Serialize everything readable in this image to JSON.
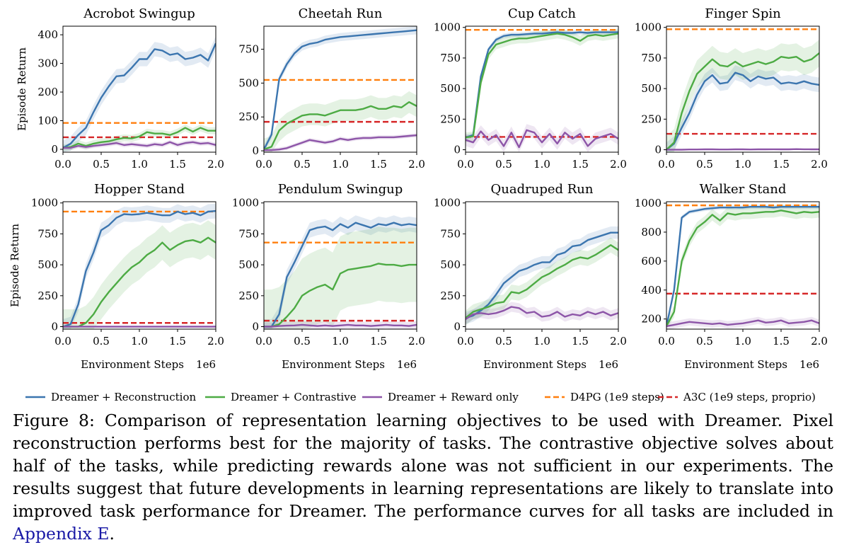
{
  "colors": {
    "reconstruction": "#3b75af",
    "contrastive": "#4dab44",
    "reward_only": "#8d55a8",
    "d4pg": "#ff7f0e",
    "a3c": "#d62728"
  },
  "legend": [
    {
      "label": "Dreamer + Reconstruction",
      "style": "solid",
      "color": "#3b75af"
    },
    {
      "label": "Dreamer + Contrastive",
      "style": "solid",
      "color": "#4dab44"
    },
    {
      "label": "Dreamer + Reward only",
      "style": "solid",
      "color": "#8d55a8"
    },
    {
      "label": "D4PG (1e9 steps)",
      "style": "dashed",
      "color": "#ff7f0e"
    },
    {
      "label": "A3C (1e9 steps, proprio)",
      "style": "dashed",
      "color": "#d62728"
    }
  ],
  "caption": {
    "text": "Figure 8: Comparison of representation learning objectives to be used with Dreamer. Pixel reconstruction performs best for the majority of tasks. The contrastive objective solves about half of the tasks, while predicting rewards alone was not sufficient in our experiments. The results suggest that future developments in learning representations are likely to translate into improved task performance for Dreamer. The performance curves for all tasks are included in ",
    "link": "Appendix E",
    "end": "."
  },
  "chart_data": [
    {
      "type": "line",
      "title": "Acrobot Swingup",
      "ylabel": "Episode Return",
      "xlabel": "",
      "x_offset_label": "",
      "xlim": [
        0,
        2.0
      ],
      "ylim": [
        -10,
        430
      ],
      "xticks": [
        0.0,
        0.5,
        1.0,
        1.5,
        2.0
      ],
      "yticks": [
        0,
        100,
        200,
        300,
        400
      ],
      "x": [
        0.0,
        0.1,
        0.2,
        0.3,
        0.4,
        0.5,
        0.6,
        0.7,
        0.8,
        0.9,
        1.0,
        1.1,
        1.2,
        1.3,
        1.4,
        1.5,
        1.6,
        1.7,
        1.8,
        1.9,
        2.0
      ],
      "series": [
        {
          "name": "Dreamer + Reconstruction",
          "values": [
            5,
            20,
            50,
            75,
            130,
            180,
            220,
            255,
            258,
            285,
            315,
            315,
            350,
            345,
            330,
            335,
            315,
            320,
            330,
            310,
            370
          ],
          "band": 25
        },
        {
          "name": "Dreamer + Contrastive",
          "values": [
            5,
            8,
            20,
            12,
            20,
            25,
            28,
            35,
            40,
            38,
            45,
            60,
            55,
            55,
            50,
            60,
            75,
            62,
            75,
            65,
            65
          ],
          "band": 12
        },
        {
          "name": "Dreamer + Reward only",
          "values": [
            5,
            5,
            12,
            8,
            12,
            15,
            18,
            22,
            15,
            18,
            15,
            12,
            18,
            15,
            25,
            15,
            22,
            25,
            20,
            22,
            15
          ],
          "band": 8
        }
      ],
      "baselines": [
        {
          "name": "D4PG (1e9 steps)",
          "value": 92
        },
        {
          "name": "A3C (1e9 steps, proprio)",
          "value": 42
        }
      ]
    },
    {
      "type": "line",
      "title": "Cheetah Run",
      "ylabel": "",
      "xlabel": "",
      "x_offset_label": "",
      "xlim": [
        0,
        2.0
      ],
      "ylim": [
        -10,
        920
      ],
      "xticks": [
        0.0,
        0.5,
        1.0,
        1.5,
        2.0
      ],
      "yticks": [
        0,
        250,
        500,
        750
      ],
      "x": [
        0.0,
        0.1,
        0.2,
        0.3,
        0.4,
        0.5,
        0.6,
        0.7,
        0.8,
        0.9,
        1.0,
        1.1,
        1.2,
        1.3,
        1.4,
        1.5,
        1.6,
        1.7,
        1.8,
        1.9,
        2.0
      ],
      "series": [
        {
          "name": "Dreamer + Reconstruction",
          "values": [
            10,
            120,
            530,
            640,
            720,
            770,
            790,
            800,
            820,
            830,
            840,
            845,
            850,
            855,
            860,
            865,
            870,
            875,
            880,
            885,
            890
          ],
          "band": 30
        },
        {
          "name": "Dreamer + Contrastive",
          "values": [
            10,
            30,
            150,
            200,
            230,
            260,
            270,
            270,
            260,
            280,
            300,
            300,
            300,
            310,
            330,
            310,
            310,
            330,
            320,
            360,
            330
          ],
          "band": 80
        },
        {
          "name": "Dreamer + Reward only",
          "values": [
            5,
            5,
            10,
            20,
            40,
            60,
            80,
            70,
            60,
            70,
            90,
            80,
            90,
            95,
            95,
            100,
            100,
            100,
            105,
            110,
            115
          ],
          "band": 15
        }
      ],
      "baselines": [
        {
          "name": "D4PG (1e9 steps)",
          "value": 523
        },
        {
          "name": "A3C (1e9 steps, proprio)",
          "value": 214
        }
      ]
    },
    {
      "type": "line",
      "title": "Cup Catch",
      "ylabel": "",
      "xlabel": "",
      "x_offset_label": "",
      "xlim": [
        0,
        2.0
      ],
      "ylim": [
        -20,
        1010
      ],
      "xticks": [
        0.0,
        0.5,
        1.0,
        1.5,
        2.0
      ],
      "yticks": [
        0,
        250,
        500,
        750,
        1000
      ],
      "x": [
        0.0,
        0.1,
        0.2,
        0.3,
        0.4,
        0.5,
        0.6,
        0.7,
        0.8,
        0.9,
        1.0,
        1.1,
        1.2,
        1.3,
        1.4,
        1.5,
        1.6,
        1.7,
        1.8,
        1.9,
        2.0
      ],
      "series": [
        {
          "name": "Dreamer + Reconstruction",
          "values": [
            100,
            120,
            600,
            820,
            900,
            930,
            940,
            940,
            945,
            950,
            950,
            955,
            960,
            955,
            955,
            960,
            955,
            960,
            960,
            960,
            960
          ],
          "band": 20
        },
        {
          "name": "Dreamer + Contrastive",
          "values": [
            100,
            110,
            550,
            780,
            860,
            880,
            900,
            910,
            910,
            920,
            930,
            940,
            950,
            940,
            920,
            890,
            930,
            940,
            930,
            940,
            950
          ],
          "band": 40
        },
        {
          "name": "Dreamer + Reward only",
          "values": [
            80,
            60,
            150,
            80,
            120,
            30,
            140,
            20,
            160,
            140,
            60,
            130,
            50,
            140,
            90,
            130,
            30,
            90,
            110,
            130,
            90
          ],
          "band": 50
        }
      ],
      "baselines": [
        {
          "name": "D4PG (1e9 steps)",
          "value": 980
        },
        {
          "name": "A3C (1e9 steps, proprio)",
          "value": 105
        }
      ]
    },
    {
      "type": "line",
      "title": "Finger Spin",
      "ylabel": "",
      "xlabel": "",
      "x_offset_label": "",
      "xlim": [
        0,
        2.0
      ],
      "ylim": [
        -20,
        1010
      ],
      "xticks": [
        0.0,
        0.5,
        1.0,
        1.5,
        2.0
      ],
      "yticks": [
        0,
        250,
        500,
        750,
        1000
      ],
      "x": [
        0.0,
        0.1,
        0.2,
        0.3,
        0.4,
        0.5,
        0.6,
        0.7,
        0.8,
        0.9,
        1.0,
        1.1,
        1.2,
        1.3,
        1.4,
        1.5,
        1.6,
        1.7,
        1.8,
        1.9,
        2.0
      ],
      "series": [
        {
          "name": "Dreamer + Reconstruction",
          "values": [
            0,
            50,
            180,
            300,
            450,
            560,
            610,
            540,
            550,
            630,
            610,
            560,
            600,
            580,
            590,
            540,
            550,
            540,
            560,
            540,
            530
          ],
          "band": 60
        },
        {
          "name": "Dreamer + Contrastive",
          "values": [
            0,
            60,
            300,
            480,
            620,
            680,
            740,
            690,
            680,
            720,
            680,
            700,
            720,
            700,
            720,
            760,
            750,
            760,
            720,
            740,
            790
          ],
          "band": 110
        },
        {
          "name": "Dreamer + Reward only",
          "values": [
            0,
            0,
            0,
            2,
            2,
            3,
            3,
            2,
            2,
            3,
            3,
            2,
            3,
            3,
            4,
            3,
            3,
            5,
            4,
            3,
            3
          ],
          "band": 5
        }
      ],
      "baselines": [
        {
          "name": "D4PG (1e9 steps)",
          "value": 985
        },
        {
          "name": "A3C (1e9 steps, proprio)",
          "value": 130
        }
      ]
    },
    {
      "type": "line",
      "title": "Hopper Stand",
      "ylabel": "Episode Return",
      "xlabel": "Environment Steps",
      "x_offset_label": "1e6",
      "xlim": [
        0,
        2.0
      ],
      "ylim": [
        -20,
        1010
      ],
      "xticks": [
        0.0,
        0.5,
        1.0,
        1.5,
        2.0
      ],
      "yticks": [
        0,
        250,
        500,
        750,
        1000
      ],
      "x": [
        0.0,
        0.1,
        0.2,
        0.3,
        0.4,
        0.5,
        0.6,
        0.7,
        0.8,
        0.9,
        1.0,
        1.1,
        1.2,
        1.3,
        1.4,
        1.5,
        1.6,
        1.7,
        1.8,
        1.9,
        2.0
      ],
      "series": [
        {
          "name": "Dreamer + Reconstruction",
          "values": [
            0,
            20,
            180,
            450,
            600,
            780,
            820,
            880,
            910,
            905,
            910,
            920,
            910,
            900,
            900,
            930,
            910,
            920,
            900,
            930,
            935
          ],
          "band": 60
        },
        {
          "name": "Dreamer + Contrastive",
          "values": [
            0,
            0,
            0,
            30,
            100,
            200,
            280,
            350,
            420,
            480,
            520,
            580,
            620,
            680,
            620,
            660,
            690,
            700,
            680,
            720,
            680
          ],
          "band": 140
        },
        {
          "name": "Dreamer + Reward only",
          "values": [
            0,
            0,
            0,
            0,
            0,
            0,
            0,
            0,
            0,
            0,
            0,
            0,
            0,
            0,
            0,
            0,
            0,
            0,
            0,
            0,
            0
          ],
          "band": 4
        }
      ],
      "baselines": [
        {
          "name": "D4PG (1e9 steps)",
          "value": 930
        },
        {
          "name": "A3C (1e9 steps, proprio)",
          "value": 30
        }
      ]
    },
    {
      "type": "line",
      "title": "Pendulum Swingup",
      "ylabel": "",
      "xlabel": "Environment Steps",
      "x_offset_label": "1e6",
      "xlim": [
        0,
        2.0
      ],
      "ylim": [
        -20,
        1010
      ],
      "xticks": [
        0.0,
        0.5,
        1.0,
        1.5,
        2.0
      ],
      "yticks": [
        0,
        250,
        500,
        750,
        1000
      ],
      "x": [
        0.0,
        0.1,
        0.2,
        0.3,
        0.4,
        0.5,
        0.6,
        0.7,
        0.8,
        0.9,
        1.0,
        1.1,
        1.2,
        1.3,
        1.4,
        1.5,
        1.6,
        1.7,
        1.8,
        1.9,
        2.0
      ],
      "series": [
        {
          "name": "Dreamer + Reconstruction",
          "values": [
            0,
            0,
            100,
            400,
            520,
            650,
            780,
            800,
            810,
            780,
            830,
            800,
            840,
            820,
            800,
            830,
            820,
            840,
            820,
            830,
            820
          ],
          "band": 60
        },
        {
          "name": "Dreamer + Contrastive",
          "values": [
            0,
            0,
            20,
            80,
            150,
            250,
            290,
            320,
            340,
            300,
            430,
            460,
            470,
            480,
            490,
            510,
            500,
            500,
            490,
            500,
            500
          ],
          "band": 300
        },
        {
          "name": "Dreamer + Reward only",
          "values": [
            0,
            0,
            5,
            8,
            10,
            15,
            10,
            5,
            10,
            5,
            10,
            15,
            10,
            10,
            5,
            10,
            15,
            10,
            10,
            5,
            15
          ],
          "band": 30
        }
      ],
      "baselines": [
        {
          "name": "D4PG (1e9 steps)",
          "value": 680
        },
        {
          "name": "A3C (1e9 steps, proprio)",
          "value": 48
        }
      ]
    },
    {
      "type": "line",
      "title": "Quadruped Run",
      "ylabel": "",
      "xlabel": "Environment Steps",
      "x_offset_label": "1e6",
      "xlim": [
        0,
        2.0
      ],
      "ylim": [
        -20,
        1010
      ],
      "xticks": [
        0.0,
        0.5,
        1.0,
        1.5,
        2.0
      ],
      "yticks": [
        0,
        250,
        500,
        750,
        1000
      ],
      "x": [
        0.0,
        0.1,
        0.2,
        0.3,
        0.4,
        0.5,
        0.6,
        0.7,
        0.8,
        0.9,
        1.0,
        1.1,
        1.2,
        1.3,
        1.4,
        1.5,
        1.6,
        1.7,
        1.8,
        1.9,
        2.0
      ],
      "series": [
        {
          "name": "Dreamer + Reconstruction",
          "values": [
            70,
            90,
            130,
            180,
            260,
            350,
            400,
            450,
            470,
            500,
            520,
            520,
            580,
            600,
            650,
            660,
            700,
            720,
            740,
            760,
            760
          ],
          "band": 50
        },
        {
          "name": "Dreamer + Contrastive",
          "values": [
            70,
            120,
            140,
            160,
            190,
            200,
            280,
            270,
            300,
            350,
            400,
            430,
            470,
            500,
            540,
            560,
            550,
            580,
            620,
            660,
            620
          ],
          "band": 60
        },
        {
          "name": "Dreamer + Reward only",
          "values": [
            60,
            100,
            110,
            100,
            110,
            130,
            160,
            150,
            110,
            120,
            80,
            90,
            120,
            80,
            100,
            90,
            120,
            100,
            120,
            90,
            110
          ],
          "band": 40
        }
      ],
      "baselines": []
    },
    {
      "type": "line",
      "title": "Walker Stand",
      "ylabel": "",
      "xlabel": "Environment Steps",
      "x_offset_label": "1e6",
      "xlim": [
        0,
        2.0
      ],
      "ylim": [
        130,
        1010
      ],
      "xticks": [
        0.0,
        0.5,
        1.0,
        1.5,
        2.0
      ],
      "yticks": [
        200,
        400,
        600,
        800,
        1000
      ],
      "x": [
        0.0,
        0.1,
        0.2,
        0.3,
        0.4,
        0.5,
        0.6,
        0.7,
        0.8,
        0.9,
        1.0,
        1.1,
        1.2,
        1.3,
        1.4,
        1.5,
        1.6,
        1.7,
        1.8,
        1.9,
        2.0
      ],
      "series": [
        {
          "name": "Dreamer + Reconstruction",
          "values": [
            150,
            400,
            900,
            940,
            950,
            960,
            965,
            970,
            970,
            970,
            970,
            975,
            975,
            975,
            970,
            975,
            975,
            975,
            975,
            975,
            975
          ],
          "band": 15
        },
        {
          "name": "Dreamer + Contrastive",
          "values": [
            150,
            250,
            600,
            740,
            830,
            870,
            920,
            880,
            930,
            920,
            930,
            930,
            935,
            940,
            940,
            950,
            940,
            930,
            940,
            935,
            940
          ],
          "band": 40
        },
        {
          "name": "Dreamer + Reward only",
          "values": [
            150,
            160,
            170,
            180,
            175,
            170,
            165,
            170,
            160,
            165,
            170,
            180,
            190,
            175,
            180,
            190,
            170,
            175,
            180,
            190,
            170
          ],
          "band": 25
        }
      ],
      "baselines": [
        {
          "name": "D4PG (1e9 steps)",
          "value": 985
        },
        {
          "name": "A3C (1e9 steps, proprio)",
          "value": 375
        }
      ]
    }
  ]
}
